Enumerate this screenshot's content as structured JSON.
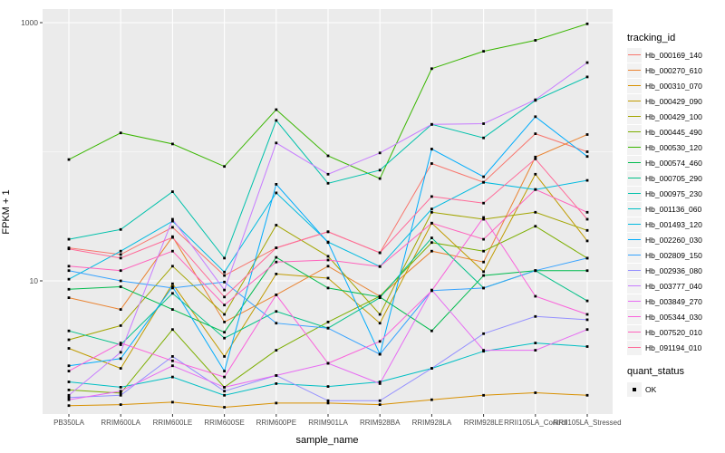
{
  "figure": {
    "background": "#FFFFFF",
    "panel_background": "#EBEBEB",
    "grid_color": "#FFFFFF",
    "tick_label_color": "#4D4D4D",
    "point_color": "#000000"
  },
  "legend": {
    "tracking_title": "tracking_id",
    "quant_title": "quant_status",
    "quant_items": [
      {
        "label": "OK",
        "marker": "black-square"
      }
    ]
  },
  "chart_data": {
    "type": "line",
    "title": "",
    "xlabel": "sample_name",
    "ylabel": "FPKM + 1",
    "y_scale": "log10",
    "ylim": [
      0.9,
      1300
    ],
    "y_major_breaks": [
      10,
      1000
    ],
    "y_minor_breaks": [
      100
    ],
    "y_tick_labels": [
      "1000",
      "10"
    ],
    "grid": true,
    "legend_position": "right",
    "marker": "black-square",
    "categories": [
      "PB350LA",
      "RRIM600LA",
      "RRIM600LE",
      "RRIM600SE",
      "RRIM600PE",
      "RRIM901LA",
      "RRIM928BA",
      "RRIM928LA",
      "RRIM928LE",
      "RRII105LA_Control",
      "RRII105LA_Stressed"
    ],
    "series": [
      {
        "name": "Hb_000169_140",
        "color": "#F8766D",
        "values": [
          18,
          16,
          26,
          11,
          18,
          24,
          16.5,
          81,
          58,
          138,
          100
        ]
      },
      {
        "name": "Hb_000270_610",
        "color": "#EA8331",
        "values": [
          7.4,
          6,
          22,
          4.8,
          7.8,
          13,
          7.6,
          17,
          14,
          91,
          136
        ]
      },
      {
        "name": "Hb_000310_070",
        "color": "#D89000",
        "values": [
          1.08,
          1.1,
          1.15,
          1.05,
          1.13,
          1.13,
          1.1,
          1.2,
          1.3,
          1.36,
          1.3
        ]
      },
      {
        "name": "Hb_000429_090",
        "color": "#C09B00",
        "values": [
          3,
          2.1,
          9.5,
          2.6,
          11.3,
          10.5,
          4.7,
          28,
          11.8,
          67,
          20.4
        ]
      },
      {
        "name": "Hb_000429_100",
        "color": "#A3A500",
        "values": [
          3.5,
          4.5,
          13,
          5.5,
          27,
          15.5,
          5.5,
          34,
          30,
          34,
          24.6
        ]
      },
      {
        "name": "Hb_000445_490",
        "color": "#7CAE00",
        "values": [
          1.43,
          1.35,
          4.2,
          1.5,
          2.9,
          4.8,
          7.6,
          19.8,
          17,
          26.5,
          15
        ]
      },
      {
        "name": "Hb_000530_120",
        "color": "#39B600",
        "values": [
          87,
          140,
          115,
          77,
          212,
          93,
          62,
          440,
          600,
          730,
          980
        ]
      },
      {
        "name": "Hb_000574_460",
        "color": "#00BB4E",
        "values": [
          8.6,
          9,
          6,
          4,
          15.2,
          8.8,
          7.5,
          4.1,
          11,
          12,
          12
        ]
      },
      {
        "name": "Hb_000705_290",
        "color": "#00C087",
        "values": [
          4.1,
          3.2,
          8,
          3.6,
          5.8,
          4.3,
          7.4,
          21.5,
          8.8,
          12,
          7
        ]
      },
      {
        "name": "Hb_000975_230",
        "color": "#00C1AB",
        "values": [
          21,
          25,
          49,
          15,
          175,
          57,
          72,
          163,
          128,
          250,
          380
        ]
      },
      {
        "name": "Hb_001136_060",
        "color": "#00BFC4",
        "values": [
          1.65,
          1.5,
          1.8,
          1.3,
          1.6,
          1.52,
          1.65,
          2.1,
          2.85,
          3.3,
          3.1
        ]
      },
      {
        "name": "Hb_001493_120",
        "color": "#00BAE0",
        "values": [
          10.3,
          17,
          29,
          11.7,
          48,
          20,
          12.9,
          36,
          58,
          51,
          60
        ]
      },
      {
        "name": "Hb_002260_030",
        "color": "#00ACFC",
        "values": [
          2.2,
          2.5,
          9,
          2,
          56,
          19.8,
          2.7,
          105,
          64,
          187,
          92
        ]
      },
      {
        "name": "Hb_002809_150",
        "color": "#35A2FF",
        "values": [
          12,
          10,
          8.8,
          9.8,
          4.7,
          4.3,
          2.7,
          8.4,
          8.8,
          12,
          15
        ]
      },
      {
        "name": "Hb_002936_080",
        "color": "#9590FF",
        "values": [
          1.25,
          1.3,
          2.6,
          1.4,
          1.85,
          1.18,
          1.18,
          2.1,
          3.9,
          5.3,
          5
        ]
      },
      {
        "name": "Hb_003777_040",
        "color": "#C77CFF",
        "values": [
          1.3,
          2.8,
          30,
          8.5,
          117,
          67,
          98,
          163,
          165,
          253,
          490
        ]
      },
      {
        "name": "Hb_003849_270",
        "color": "#E76BF3",
        "values": [
          1.2,
          1.4,
          2.2,
          1.5,
          1.85,
          2.3,
          1.6,
          8.5,
          2.9,
          2.9,
          4.2
        ]
      },
      {
        "name": "Hb_005344_030",
        "color": "#FA62DB",
        "values": [
          2,
          3.3,
          2.4,
          1.8,
          7.8,
          2.3,
          3.4,
          8.4,
          31,
          7.6,
          5.5
        ]
      },
      {
        "name": "Hb_007520_010",
        "color": "#FF62BC",
        "values": [
          13,
          12,
          17,
          6.5,
          14,
          14.5,
          12.9,
          28,
          21,
          51,
          34
        ]
      },
      {
        "name": "Hb_091194_010",
        "color": "#FF6A98",
        "values": [
          17.7,
          15,
          21.7,
          7.5,
          18,
          24,
          16.5,
          45,
          40,
          88,
          30
        ]
      }
    ]
  }
}
